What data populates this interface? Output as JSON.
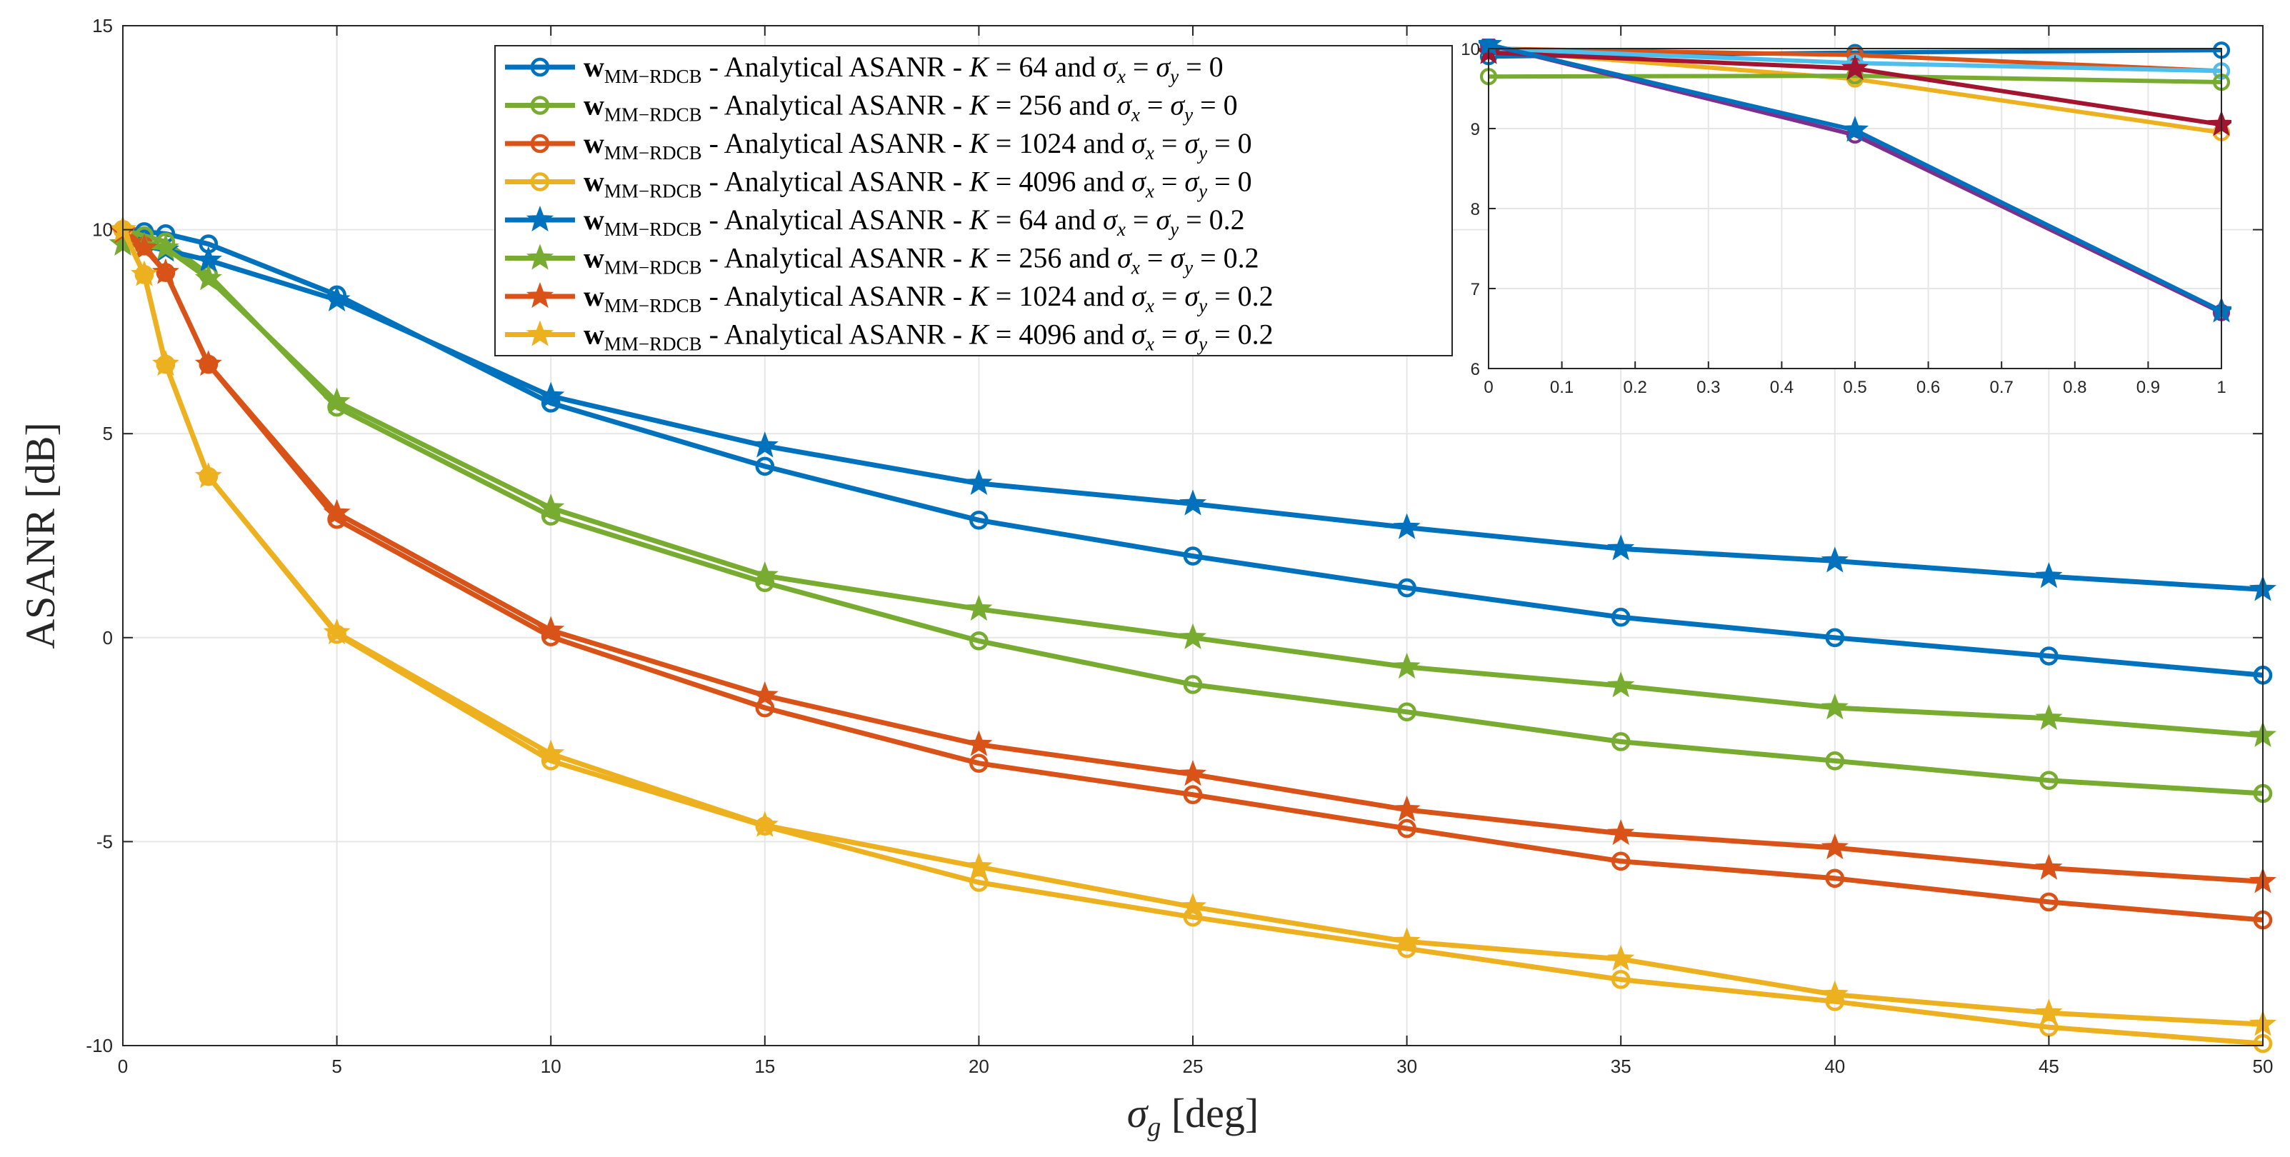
{
  "chart_data": [
    {
      "type": "line",
      "title": "",
      "xlabel": "σg [deg]",
      "ylabel": "ASANR [dB]",
      "xlim": [
        0,
        50
      ],
      "ylim": [
        -10,
        15
      ],
      "grid": true,
      "legend_position": "top-center",
      "x_ticks": [
        "0",
        "5",
        "10",
        "15",
        "20",
        "25",
        "30",
        "35",
        "40",
        "45",
        "50"
      ],
      "y_ticks": [
        "-10",
        "-5",
        "0",
        "5",
        "10",
        "15"
      ],
      "x": [
        0,
        0.5,
        1,
        2,
        5,
        10,
        15,
        20,
        25,
        30,
        35,
        40,
        45,
        50
      ],
      "series": [
        {
          "name": "w_MM-RDCB - Analytical ASANR - K = 64 and σx = σy = 0",
          "color": "#0072BD",
          "marker": "circle",
          "values": [
            10,
            9.95,
            9.9,
            9.65,
            8.4,
            5.75,
            4.2,
            2.88,
            2.0,
            1.22,
            0.5,
            0.0,
            -0.45,
            -0.92
          ]
        },
        {
          "name": "w_MM-RDCB - Analytical ASANR - K = 256 and σx = σy = 0",
          "color": "#77AC30",
          "marker": "circle",
          "values": [
            10,
            9.85,
            9.7,
            8.9,
            5.65,
            2.98,
            1.35,
            -0.08,
            -1.15,
            -1.82,
            -2.55,
            -3.02,
            -3.5,
            -3.82
          ]
        },
        {
          "name": "w_MM-RDCB - Analytical ASANR - K = 1024 and σx = σy = 0",
          "color": "#D95319",
          "marker": "circle",
          "values": [
            10,
            9.6,
            8.95,
            6.7,
            2.9,
            0.02,
            -1.72,
            -3.08,
            -3.85,
            -4.68,
            -5.48,
            -5.9,
            -6.48,
            -6.92
          ]
        },
        {
          "name": "w_MM-RDCB - Analytical ASANR - K = 4096 and σx = σy = 0",
          "color": "#EDB120",
          "marker": "circle",
          "values": [
            10,
            8.9,
            6.7,
            3.95,
            0.08,
            -3.02,
            -4.62,
            -6.0,
            -6.85,
            -7.62,
            -8.38,
            -8.92,
            -9.55,
            -9.95
          ]
        },
        {
          "name": "w_MM-RDCB - Analytical ASANR - K = 64 and σx = σy = 0.2",
          "color": "#0072BD",
          "marker": "star",
          "values": [
            9.65,
            9.6,
            9.5,
            9.25,
            8.28,
            5.92,
            4.7,
            3.78,
            3.28,
            2.7,
            2.18,
            1.88,
            1.5,
            1.18
          ]
        },
        {
          "name": "w_MM-RDCB - Analytical ASANR - K = 256 and σx = σy = 0.2",
          "color": "#77AC30",
          "marker": "star",
          "values": [
            9.65,
            9.6,
            9.55,
            8.8,
            5.78,
            3.18,
            1.52,
            0.7,
            0.0,
            -0.72,
            -1.18,
            -1.72,
            -1.98,
            -2.4
          ]
        },
        {
          "name": "w_MM-RDCB - Analytical ASANR - K = 1024 and σx = σy = 0.2",
          "color": "#D95319",
          "marker": "star",
          "values": [
            9.95,
            9.55,
            8.95,
            6.7,
            3.05,
            0.18,
            -1.42,
            -2.62,
            -3.35,
            -4.22,
            -4.8,
            -5.15,
            -5.65,
            -5.98
          ]
        },
        {
          "name": "w_MM-RDCB - Analytical ASANR - K = 4096 and σx = σy = 0.2",
          "color": "#EDB120",
          "marker": "star",
          "values": [
            10,
            8.9,
            6.7,
            3.95,
            0.12,
            -2.85,
            -4.6,
            -5.62,
            -6.6,
            -7.45,
            -7.88,
            -8.75,
            -9.2,
            -9.48
          ]
        }
      ],
      "legend": [
        {
          "w": "w",
          "sub": "MM−RDCB",
          "rest": " - Analytical ASANR - ",
          "K": "K",
          "eq": " = 64 and ",
          "sx": "σ",
          "sxs": "x",
          "mid": " = ",
          "sy": "σ",
          "sys": "y",
          "tail": " = 0"
        },
        {
          "w": "w",
          "sub": "MM−RDCB",
          "rest": " - Analytical ASANR - ",
          "K": "K",
          "eq": " = 256 and ",
          "sx": "σ",
          "sxs": "x",
          "mid": " = ",
          "sy": "σ",
          "sys": "y",
          "tail": " = 0"
        },
        {
          "w": "w",
          "sub": "MM−RDCB",
          "rest": " - Analytical ASANR - ",
          "K": "K",
          "eq": " = 1024 and ",
          "sx": "σ",
          "sxs": "x",
          "mid": " = ",
          "sy": "σ",
          "sys": "y",
          "tail": " = 0"
        },
        {
          "w": "w",
          "sub": "MM−RDCB",
          "rest": " - Analytical ASANR - ",
          "K": "K",
          "eq": " = 4096 and ",
          "sx": "σ",
          "sxs": "x",
          "mid": " = ",
          "sy": "σ",
          "sys": "y",
          "tail": " = 0"
        },
        {
          "w": "w",
          "sub": "MM−RDCB",
          "rest": " - Analytical ASANR - ",
          "K": "K",
          "eq": " = 64 and ",
          "sx": "σ",
          "sxs": "x",
          "mid": " = ",
          "sy": "σ",
          "sys": "y",
          "tail": " = 0.2"
        },
        {
          "w": "w",
          "sub": "MM−RDCB",
          "rest": " - Analytical ASANR - ",
          "K": "K",
          "eq": " = 256 and ",
          "sx": "σ",
          "sxs": "x",
          "mid": " = ",
          "sy": "σ",
          "sys": "y",
          "tail": " = 0.2"
        },
        {
          "w": "w",
          "sub": "MM−RDCB",
          "rest": " - Analytical ASANR - ",
          "K": "K",
          "eq": " = 1024 and ",
          "sx": "σ",
          "sxs": "x",
          "mid": " = ",
          "sy": "σ",
          "sys": "y",
          "tail": " = 0.2"
        },
        {
          "w": "w",
          "sub": "MM−RDCB",
          "rest": " - Analytical ASANR - ",
          "K": "K",
          "eq": " = 4096 and ",
          "sx": "σ",
          "sxs": "x",
          "mid": " = ",
          "sy": "σ",
          "sys": "y",
          "tail": " = 0.2"
        }
      ],
      "xlabel_parts": {
        "sym": "σ",
        "sub": "g",
        "unit": " [deg]"
      }
    },
    {
      "type": "line",
      "title": "",
      "xlabel": "",
      "ylabel": "",
      "xlim": [
        0,
        1
      ],
      "ylim": [
        6,
        10
      ],
      "grid": true,
      "x_ticks": [
        "0",
        "0.1",
        "0.2",
        "0.3",
        "0.4",
        "0.5",
        "0.6",
        "0.7",
        "0.8",
        "0.9",
        "1"
      ],
      "y_ticks": [
        "6",
        "7",
        "8",
        "9",
        "10"
      ],
      "x": [
        0,
        0.5,
        1
      ],
      "series": [
        {
          "name": "inset-blue-circle",
          "color": "#0072BD",
          "marker": "circle",
          "values": [
            9.9,
            9.95,
            9.98
          ]
        },
        {
          "name": "inset-orange-circle",
          "color": "#D95319",
          "marker": "circle",
          "values": [
            10.0,
            9.92,
            9.72
          ]
        },
        {
          "name": "inset-yellow-circle",
          "color": "#EDB120",
          "marker": "circle",
          "values": [
            9.98,
            9.62,
            8.95
          ]
        },
        {
          "name": "inset-cyan-circle",
          "color": "#4DBEEE",
          "marker": "circle",
          "values": [
            10.0,
            9.82,
            9.72
          ]
        },
        {
          "name": "inset-green-circle",
          "color": "#77AC30",
          "marker": "circle",
          "values": [
            9.65,
            9.66,
            9.58
          ]
        },
        {
          "name": "inset-darkred-star",
          "color": "#A2142F",
          "marker": "star",
          "values": [
            9.95,
            9.75,
            9.05
          ]
        },
        {
          "name": "inset-purple-circle",
          "color": "#7E2F8E",
          "marker": "circle",
          "values": [
            10.05,
            8.92,
            6.7
          ]
        },
        {
          "name": "inset-blue-star",
          "color": "#0072BD",
          "marker": "star",
          "values": [
            10.05,
            8.98,
            6.72
          ]
        }
      ]
    }
  ]
}
